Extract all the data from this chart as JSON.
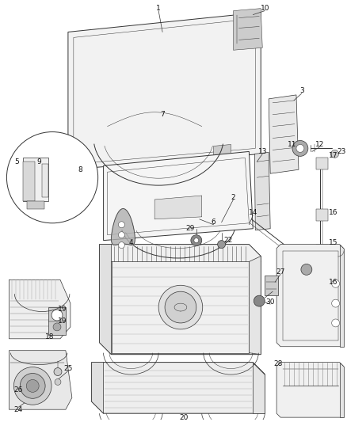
{
  "bg_color": "#ffffff",
  "line_color": "#333333",
  "label_color": "#111111",
  "font_size": 6.5,
  "fig_width": 4.38,
  "fig_height": 5.33
}
